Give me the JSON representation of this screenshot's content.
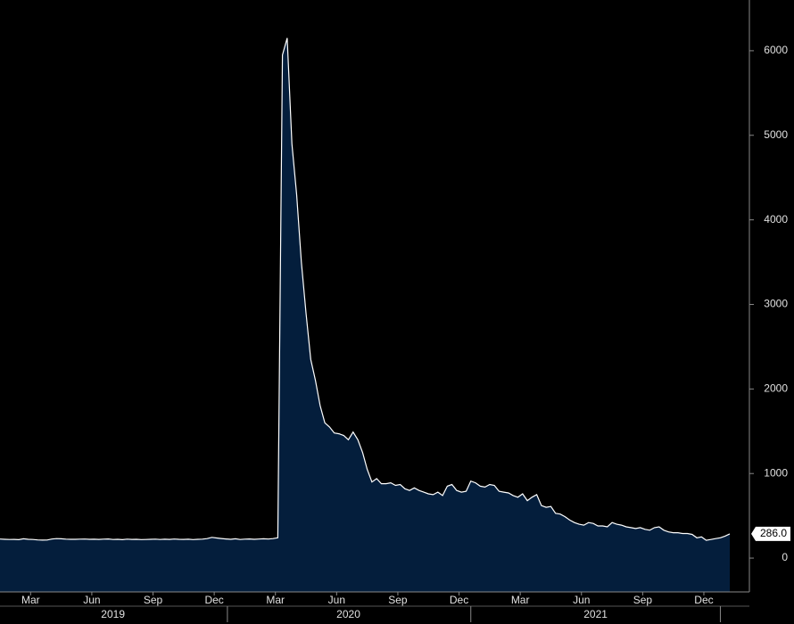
{
  "chart_data": {
    "type": "area",
    "color": "#041e3c",
    "line_color": "#ffffff",
    "x": [
      0,
      1,
      2,
      3,
      4,
      5,
      6,
      7,
      8,
      9,
      10,
      11,
      12,
      13,
      14,
      15,
      16,
      17,
      18,
      19,
      20,
      21,
      22,
      23,
      24,
      25,
      26,
      27,
      28,
      29,
      30,
      31,
      32,
      33,
      34,
      35,
      36,
      37,
      38,
      39,
      40,
      41,
      42,
      43,
      44,
      45,
      46,
      47,
      48,
      49,
      50,
      51,
      52,
      53,
      54,
      55,
      56,
      57,
      58,
      59,
      60,
      61,
      62,
      63,
      64,
      65,
      66,
      67,
      68,
      69,
      70,
      71,
      72,
      73,
      74,
      75,
      76,
      77,
      78,
      79,
      80,
      81,
      82,
      83,
      84,
      85,
      86,
      87,
      88,
      89,
      90,
      91,
      92,
      93,
      94,
      95,
      96,
      97,
      98,
      99,
      100,
      101,
      102,
      103,
      104,
      105,
      106,
      107,
      108,
      109,
      110,
      111,
      112,
      113,
      114,
      115,
      116,
      117,
      118,
      119,
      120,
      121,
      122,
      123,
      124,
      125,
      126,
      127,
      128,
      129,
      130,
      131,
      132,
      133,
      134,
      135,
      136,
      137,
      138,
      139,
      140,
      141,
      142,
      143,
      144,
      145,
      146,
      147,
      148,
      149,
      150,
      151,
      152,
      153,
      154,
      155
    ],
    "values": [
      225,
      222,
      220,
      221,
      218,
      228,
      222,
      220,
      215,
      212,
      214,
      225,
      230,
      228,
      224,
      222,
      222,
      224,
      225,
      222,
      223,
      221,
      224,
      226,
      220,
      222,
      218,
      224,
      221,
      222,
      219,
      220,
      222,
      224,
      220,
      223,
      221,
      225,
      222,
      221,
      223,
      219,
      222,
      224,
      230,
      245,
      238,
      232,
      226,
      222,
      228,
      220,
      224,
      226,
      222,
      225,
      228,
      225,
      230,
      240,
      5950,
      6150,
      4900,
      4300,
      3500,
      2900,
      2350,
      2100,
      1800,
      1600,
      1550,
      1480,
      1470,
      1450,
      1400,
      1490,
      1400,
      1250,
      1050,
      900,
      940,
      880,
      880,
      890,
      860,
      870,
      820,
      800,
      830,
      800,
      780,
      760,
      750,
      780,
      740,
      850,
      870,
      800,
      780,
      790,
      910,
      890,
      850,
      840,
      870,
      860,
      790,
      780,
      770,
      740,
      720,
      760,
      680,
      720,
      750,
      620,
      600,
      610,
      530,
      520,
      490,
      450,
      420,
      400,
      390,
      420,
      410,
      380,
      380,
      370,
      420,
      400,
      390,
      370,
      360,
      350,
      360,
      340,
      330,
      360,
      370,
      330,
      310,
      300,
      300,
      290,
      290,
      280,
      240,
      250,
      210,
      220,
      230,
      240,
      260,
      286
    ],
    "value_labels": {
      "155": "286.0"
    },
    "xlim": [
      0,
      155
    ],
    "xticks": [
      {
        "value": 6.5,
        "label": "Mar"
      },
      {
        "value": 19.5,
        "label": "Jun"
      },
      {
        "value": 32.5,
        "label": "Sep"
      },
      {
        "value": 45.5,
        "label": "Dec"
      },
      {
        "value": 58.5,
        "label": "Mar"
      },
      {
        "value": 71.5,
        "label": "Jun"
      },
      {
        "value": 84.5,
        "label": "Sep"
      },
      {
        "value": 97.5,
        "label": "Dec"
      },
      {
        "value": 110.5,
        "label": "Mar"
      },
      {
        "value": 123.5,
        "label": "Jun"
      },
      {
        "value": 136.5,
        "label": "Sep"
      },
      {
        "value": 149.5,
        "label": "Dec"
      }
    ],
    "year_labels": [
      {
        "value": 24,
        "label": "2019"
      },
      {
        "value": 74,
        "label": "2020"
      },
      {
        "value": 126.5,
        "label": "2021"
      }
    ],
    "year_ticks": [
      48.3,
      100,
      153
    ],
    "ylim": [
      -400,
      6600
    ],
    "yticks": [
      0,
      1000,
      2000,
      3000,
      4000,
      5000,
      6000
    ]
  }
}
